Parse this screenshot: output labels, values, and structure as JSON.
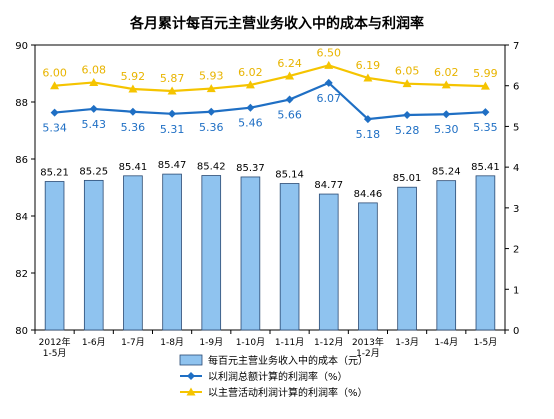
{
  "chart_data": {
    "type": "bar",
    "title": "各月累计每百元主营业务收入中的成本与利润率",
    "categories": [
      [
        "2012年",
        "1-5月"
      ],
      [
        "1-6月"
      ],
      [
        "1-7月"
      ],
      [
        "1-8月"
      ],
      [
        "1-9月"
      ],
      [
        "1-10月"
      ],
      [
        "1-11月"
      ],
      [
        "1-12月"
      ],
      [
        "2013年",
        "1-2月"
      ],
      [
        "1-3月"
      ],
      [
        "1-4月"
      ],
      [
        "1-5月"
      ]
    ],
    "left_axis": {
      "min": 80,
      "max": 90,
      "ticks": [
        80,
        82,
        84,
        86,
        88,
        90
      ]
    },
    "right_axis": {
      "min": 0,
      "max": 7,
      "ticks": [
        0,
        1,
        2,
        3,
        4,
        5,
        6,
        7
      ]
    },
    "series": [
      {
        "name": "每百元主营业务收入中的成本（元）",
        "type": "bar",
        "axis": "left",
        "color": "#8fc3ef",
        "labels": [
          "85.21",
          "85.25",
          "85.41",
          "85.47",
          "85.42",
          "85.37",
          "85.14",
          "84.77",
          "84.46",
          "85.01",
          "85.24",
          "85.41"
        ],
        "values": [
          85.21,
          85.25,
          85.41,
          85.47,
          85.42,
          85.37,
          85.14,
          84.77,
          84.46,
          85.01,
          85.24,
          85.41
        ]
      },
      {
        "name": "以利润总额计算的利润率（%）",
        "type": "line",
        "axis": "right",
        "color": "#1f6fc4",
        "marker": "diamond",
        "labels": [
          "5.34",
          "5.43",
          "5.36",
          "5.31",
          "5.36",
          "5.46",
          "5.66",
          "6.07",
          "5.18",
          "5.28",
          "5.30",
          "5.35"
        ],
        "values": [
          5.34,
          5.43,
          5.36,
          5.31,
          5.36,
          5.46,
          5.66,
          6.07,
          5.18,
          5.28,
          5.3,
          5.35
        ]
      },
      {
        "name": "以主营活动利润计算的利润率（%）",
        "type": "line",
        "axis": "right",
        "color": "#f5c400",
        "marker": "triangle",
        "labels": [
          "6.00",
          "6.08",
          "5.92",
          "5.87",
          "5.93",
          "6.02",
          "6.24",
          "6.50",
          "6.19",
          "6.05",
          "6.02",
          "5.99"
        ],
        "values": [
          6.0,
          6.08,
          5.92,
          5.87,
          5.93,
          6.02,
          6.24,
          6.5,
          6.19,
          6.05,
          6.02,
          5.99
        ]
      }
    ],
    "legend_position": "bottom"
  }
}
